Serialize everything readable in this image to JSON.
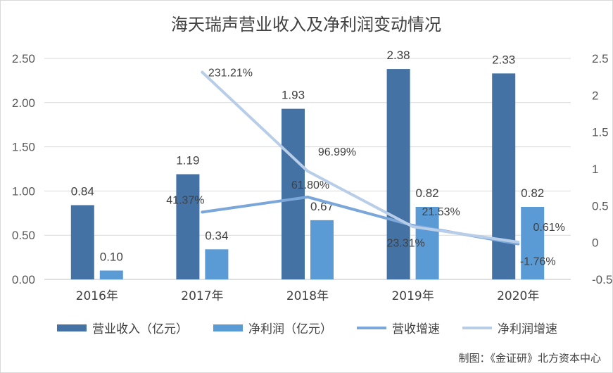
{
  "chart_data": {
    "type": "bar",
    "title": "海天瑞声营业收入及净利润变动情况",
    "categories": [
      "2016年",
      "2017年",
      "2018年",
      "2019年",
      "2020年"
    ],
    "y_left": {
      "ylim": [
        0,
        2.5
      ],
      "ticks": [
        "0.00",
        "0.50",
        "1.00",
        "1.50",
        "2.00",
        "2.50"
      ]
    },
    "y_right": {
      "ylim": [
        -0.5,
        2.5
      ],
      "ticks": [
        "-0.5",
        "0",
        "0.5",
        "1",
        "1.5",
        "2",
        "2.5"
      ]
    },
    "series": [
      {
        "name": "营业收入（亿元）",
        "kind": "bar",
        "axis": "left",
        "color": "#4472a4",
        "values": [
          0.84,
          1.19,
          1.93,
          2.38,
          2.33
        ],
        "labels": [
          "0.84",
          "1.19",
          "1.93",
          "2.38",
          "2.33"
        ]
      },
      {
        "name": "净利润（亿元）",
        "kind": "bar",
        "axis": "left",
        "color": "#5b9bd5",
        "values": [
          0.1,
          0.34,
          0.67,
          0.82,
          0.82
        ],
        "labels": [
          "0.10",
          "0.34",
          "0.67",
          "0.82",
          "0.82"
        ]
      },
      {
        "name": "营收增速",
        "kind": "line",
        "axis": "right",
        "color": "#7aa6d9",
        "values": [
          null,
          0.4137,
          0.618,
          0.2331,
          -0.0176
        ],
        "labels": [
          null,
          "41.37%",
          "61.80%",
          "23.31%",
          "-1.76%"
        ]
      },
      {
        "name": "净利润增速",
        "kind": "line",
        "axis": "right",
        "color": "#b7cde8",
        "values": [
          null,
          2.3121,
          0.9699,
          0.2153,
          0.0061
        ],
        "labels": [
          null,
          "231.21%",
          "96.99%",
          "21.53%",
          "0.61%"
        ]
      }
    ],
    "legend": "bottom",
    "grid": true
  },
  "credit": "制图：《金证研》北方资本中心"
}
